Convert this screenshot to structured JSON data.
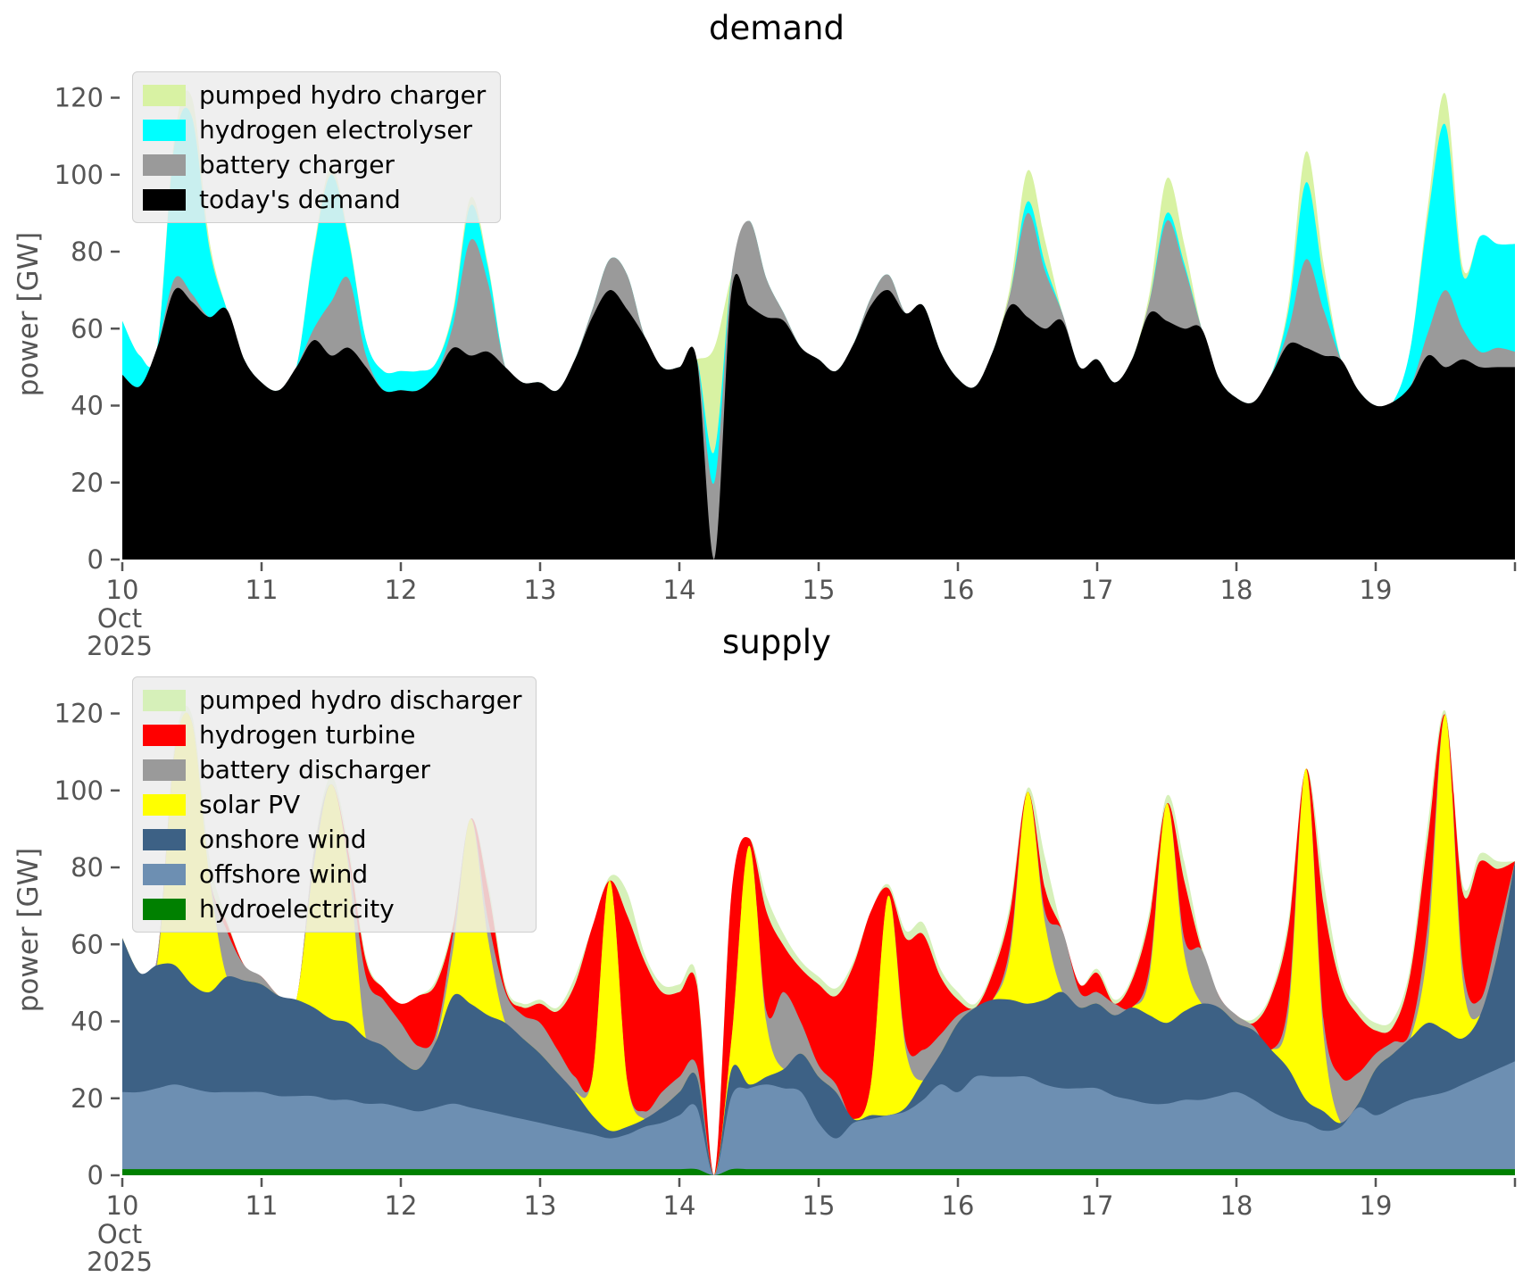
{
  "figure": {
    "background": "#ffffff",
    "tick_color": "#555555",
    "title_color": "#000000"
  },
  "chart_data": [
    {
      "type": "area",
      "stacked": true,
      "title": "demand",
      "ylabel": "power [GW]",
      "ylim": [
        0,
        128
      ],
      "yticks": [
        0,
        20,
        40,
        60,
        80,
        100,
        120
      ],
      "x_start": 10.0,
      "x_step_days": 0.125,
      "x_tick_labels": [
        "10",
        "11",
        "12",
        "13",
        "14",
        "15",
        "16",
        "17",
        "18",
        "19"
      ],
      "x_offset": {
        "month": "Oct",
        "year": "2025"
      },
      "grid": false,
      "legend_position": "upper left",
      "legend": [
        "pumped hydro charger",
        "hydrogen electrolyser",
        "battery charger",
        "today's demand"
      ],
      "series": [
        {
          "name": "today's demand",
          "color": "#000000",
          "values": [
            48,
            45,
            55,
            70,
            67,
            63,
            65,
            52,
            46,
            44,
            50,
            57,
            53,
            55,
            50,
            44,
            44,
            44,
            48,
            55,
            53,
            54,
            50,
            46,
            46,
            44,
            52,
            63,
            70,
            65,
            58,
            50,
            50,
            52,
            0,
            70,
            66,
            63,
            62,
            55,
            52,
            49,
            56,
            66,
            70,
            64,
            66,
            54,
            47,
            45,
            54,
            66,
            63,
            60,
            62,
            50,
            52,
            46,
            52,
            64,
            62,
            60,
            60,
            47,
            42,
            41,
            48,
            56,
            55,
            53,
            52,
            44,
            40,
            41,
            45,
            53,
            50,
            52,
            50,
            50,
            50
          ]
        },
        {
          "name": "battery charger",
          "color": "#9a9a9a",
          "values": [
            0,
            0,
            0,
            3,
            2,
            0,
            0,
            0,
            0,
            0,
            0,
            3,
            14,
            18,
            3,
            0,
            0,
            0,
            0,
            6,
            30,
            18,
            0,
            0,
            0,
            0,
            0,
            2,
            8,
            9,
            0,
            0,
            0,
            0,
            20,
            4,
            22,
            10,
            2,
            0,
            0,
            0,
            0,
            2,
            4,
            0,
            0,
            0,
            0,
            0,
            0,
            3,
            27,
            15,
            2,
            0,
            0,
            0,
            0,
            3,
            26,
            16,
            0,
            0,
            0,
            0,
            0,
            4,
            23,
            12,
            0,
            0,
            0,
            0,
            0,
            6,
            20,
            8,
            4,
            5,
            4
          ]
        },
        {
          "name": "hydrogen electrolyser",
          "color": "#00ffff",
          "values": [
            14,
            8,
            0,
            35,
            46,
            18,
            0,
            0,
            0,
            0,
            0,
            20,
            33,
            10,
            4,
            5,
            5,
            5,
            3,
            3,
            9,
            4,
            0,
            0,
            0,
            0,
            0,
            0,
            0,
            0,
            0,
            0,
            0,
            0,
            8,
            0,
            0,
            0,
            0,
            0,
            0,
            0,
            0,
            0,
            0,
            0,
            0,
            0,
            0,
            0,
            0,
            0,
            3,
            2,
            0,
            0,
            0,
            0,
            0,
            0,
            2,
            1,
            0,
            0,
            0,
            0,
            0,
            5,
            20,
            8,
            0,
            0,
            0,
            0,
            10,
            30,
            43,
            14,
            30,
            27,
            28
          ]
        },
        {
          "name": "pumped hydro charger",
          "color": "#d8f2a3",
          "values": [
            0,
            0,
            0,
            2,
            5,
            2,
            0,
            0,
            0,
            0,
            0,
            1,
            2,
            1,
            0,
            0,
            0,
            0,
            0,
            1,
            2,
            1,
            0,
            0,
            0,
            0,
            0,
            0,
            0,
            0,
            0,
            0,
            0,
            0,
            27,
            0,
            0,
            0,
            0,
            0,
            0,
            0,
            0,
            0,
            0,
            0,
            0,
            0,
            0,
            0,
            0,
            2,
            8,
            6,
            0,
            0,
            0,
            0,
            0,
            2,
            9,
            5,
            0,
            0,
            0,
            0,
            0,
            2,
            8,
            4,
            0,
            0,
            0,
            0,
            0,
            3,
            8,
            2,
            0,
            0,
            0
          ]
        }
      ]
    },
    {
      "type": "area",
      "stacked": true,
      "title": "supply",
      "ylabel": "power [GW]",
      "ylim": [
        0,
        128
      ],
      "yticks": [
        0,
        20,
        40,
        60,
        80,
        100,
        120
      ],
      "x_start": 10.0,
      "x_step_days": 0.125,
      "x_tick_labels": [
        "10",
        "11",
        "12",
        "13",
        "14",
        "15",
        "16",
        "17",
        "18",
        "19"
      ],
      "x_offset": {
        "month": "Oct",
        "year": "2025"
      },
      "grid": false,
      "legend_position": "upper left",
      "legend": [
        "pumped hydro discharger",
        "hydrogen turbine",
        "battery discharger",
        "solar PV",
        "onshore wind",
        "offshore wind",
        "hydroelectricity"
      ],
      "series": [
        {
          "name": "hydroelectricity",
          "color": "#008000",
          "values": [
            1.6,
            1.6,
            1.6,
            1.6,
            1.6,
            1.6,
            1.6,
            1.6,
            1.6,
            1.6,
            1.6,
            1.6,
            1.6,
            1.6,
            1.6,
            1.6,
            1.6,
            1.6,
            1.6,
            1.6,
            1.6,
            1.6,
            1.6,
            1.6,
            1.6,
            1.6,
            1.6,
            1.6,
            1.6,
            1.6,
            1.6,
            1.6,
            1.6,
            1.6,
            0,
            1.6,
            1.6,
            1.6,
            1.6,
            1.6,
            1.6,
            1.6,
            1.6,
            1.6,
            1.6,
            1.6,
            1.6,
            1.6,
            1.6,
            1.6,
            1.6,
            1.6,
            1.6,
            1.6,
            1.6,
            1.6,
            1.6,
            1.6,
            1.6,
            1.6,
            1.6,
            1.6,
            1.6,
            1.6,
            1.6,
            1.6,
            1.6,
            1.6,
            1.6,
            1.6,
            1.6,
            1.6,
            1.6,
            1.6,
            1.6,
            1.6,
            1.6,
            1.6,
            1.6,
            1.6,
            1.6
          ]
        },
        {
          "name": "offshore wind",
          "color": "#6d8fb2",
          "values": [
            20,
            20,
            21,
            22,
            21,
            20,
            20,
            20,
            20,
            19,
            19,
            19,
            18,
            18,
            17,
            17,
            16,
            15,
            16,
            17,
            16,
            15,
            14,
            13,
            12,
            11,
            10,
            9,
            8,
            9,
            11,
            12,
            14,
            16,
            0,
            19,
            21,
            22,
            21,
            20,
            12,
            8,
            12,
            13,
            14,
            15,
            18,
            22,
            20,
            24,
            24,
            24,
            24,
            22,
            21,
            21,
            21,
            19,
            18,
            17,
            17,
            18,
            18,
            19,
            20,
            18,
            15,
            13,
            12,
            10,
            11,
            16,
            14,
            16,
            18,
            19,
            20,
            22,
            24,
            26,
            28
          ]
        },
        {
          "name": "onshore wind",
          "color": "#3d6185",
          "values": [
            40,
            31,
            32,
            31,
            27,
            26,
            30,
            29,
            28,
            26,
            25,
            23,
            21,
            20,
            17,
            15,
            12,
            11,
            17,
            28,
            27,
            25,
            24,
            21,
            18,
            14,
            10,
            5,
            2,
            2,
            2,
            4,
            6,
            8,
            0,
            7,
            1,
            2,
            5,
            10,
            12,
            12,
            1,
            1,
            0,
            1,
            5,
            8,
            18,
            18,
            20,
            20,
            19,
            22,
            25,
            21,
            22,
            21,
            24,
            23,
            21,
            23,
            25,
            23,
            18,
            18,
            16,
            13,
            6,
            5,
            1,
            1,
            12,
            14,
            16,
            19,
            16,
            12,
            16,
            30,
            52
          ]
        },
        {
          "name": "solar PV",
          "color": "#ffff00",
          "values": [
            0,
            0,
            0,
            55,
            68,
            30,
            0,
            0,
            0,
            0,
            0,
            37,
            61,
            40,
            0,
            0,
            0,
            0,
            0,
            12,
            48,
            20,
            0,
            0,
            0,
            0,
            0,
            10,
            65,
            12,
            0,
            0,
            0,
            0,
            0,
            8,
            62,
            14,
            0,
            0,
            0,
            0,
            0,
            8,
            57,
            15,
            0,
            0,
            0,
            0,
            0,
            12,
            55,
            20,
            0,
            0,
            0,
            0,
            0,
            10,
            57,
            15,
            0,
            0,
            0,
            0,
            0,
            15,
            86,
            20,
            0,
            0,
            0,
            0,
            0,
            20,
            82,
            15,
            0,
            0,
            0
          ]
        },
        {
          "name": "battery discharger",
          "color": "#9a9a9a",
          "values": [
            0,
            0,
            2,
            0,
            0,
            0,
            12,
            4,
            2,
            0,
            0,
            3,
            0,
            2,
            16,
            12,
            10,
            6,
            2,
            4,
            0,
            5,
            8,
            6,
            8,
            6,
            4,
            0,
            0,
            0,
            2,
            4,
            4,
            3,
            0,
            0,
            0,
            3,
            20,
            8,
            3,
            2,
            0,
            0,
            0,
            2,
            8,
            5,
            2,
            0,
            0,
            2,
            0,
            3,
            16,
            4,
            3,
            3,
            0,
            2,
            0,
            4,
            14,
            3,
            2,
            1,
            0,
            3,
            0,
            4,
            12,
            8,
            4,
            3,
            2,
            6,
            0,
            4,
            4,
            5,
            0
          ]
        },
        {
          "name": "hydrogen turbine",
          "color": "#ff0000",
          "values": [
            0,
            0,
            0,
            0,
            0,
            0,
            2,
            0,
            0,
            0,
            0,
            0,
            0,
            2,
            4,
            3,
            5,
            13,
            13,
            2,
            0,
            8,
            1,
            2,
            5,
            10,
            24,
            39,
            0,
            43,
            39,
            26,
            22,
            21,
            0,
            38,
            2,
            26,
            12,
            14,
            21,
            23,
            40,
            45,
            2,
            27,
            30,
            15,
            4,
            0,
            7,
            9,
            0,
            6,
            0,
            2,
            5,
            0,
            7,
            13,
            0,
            15,
            0,
            0,
            0,
            1,
            14,
            19,
            0,
            30,
            24,
            15,
            6,
            4,
            15,
            22,
            0,
            19,
            36,
            17,
            0
          ]
        },
        {
          "name": "pumped hydro discharger",
          "color": "#d6f0b9",
          "values": [
            0,
            0,
            0,
            2,
            2,
            5,
            1,
            0,
            0,
            0,
            0,
            1,
            2,
            2,
            1,
            0,
            0,
            0,
            1,
            1,
            0,
            2,
            1,
            1,
            1,
            1,
            2,
            0,
            1,
            6,
            2,
            2,
            2,
            2,
            0,
            0,
            0,
            4,
            3,
            2,
            2,
            2,
            1,
            0,
            1,
            2,
            3,
            2,
            2,
            1,
            1,
            2,
            1,
            8,
            0,
            0,
            1,
            1,
            1,
            2,
            2,
            5,
            1,
            0,
            0,
            1,
            1,
            2,
            0,
            6,
            2,
            2,
            2,
            2,
            2,
            4,
            1,
            2,
            2,
            2,
            0
          ]
        }
      ]
    }
  ]
}
